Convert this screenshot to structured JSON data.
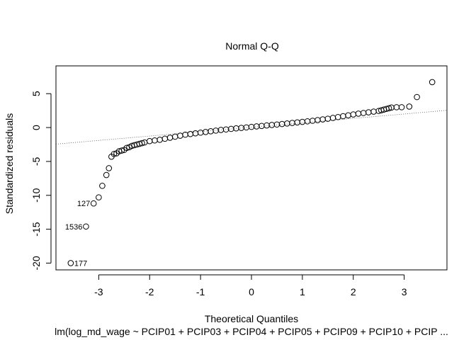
{
  "chart_data": {
    "type": "scatter",
    "title": "Normal Q-Q",
    "xlabel": "Theoretical Quantiles",
    "ylabel": "Standardized residuals",
    "subtitle": "lm(log_md_wage ~ PCIP01 + PCIP03 + PCIP04 + PCIP05 + PCIP09 + PCIP10 + PCIP ...",
    "xlim": [
      -3.84,
      3.84
    ],
    "ylim": [
      -21.0,
      9.1
    ],
    "x_ticks": [
      "-3",
      "-2",
      "-1",
      "0",
      "1",
      "2",
      "3"
    ],
    "y_ticks": [
      "-20",
      "-15",
      "-10",
      "-5",
      "0",
      "5"
    ],
    "grid": false,
    "reference_line": {
      "style": "dotted",
      "intercept": 0.05,
      "slope": 0.65
    },
    "points": [
      [
        -3.55,
        -20.0
      ],
      [
        -3.25,
        -14.6
      ],
      [
        -3.1,
        -11.2
      ],
      [
        -3.0,
        -10.3
      ],
      [
        -2.93,
        -8.6
      ],
      [
        -2.85,
        -7.0
      ],
      [
        -2.8,
        -6.0
      ],
      [
        -2.75,
        -4.3
      ],
      [
        -2.7,
        -3.9
      ],
      [
        -2.65,
        -3.8
      ],
      [
        -2.6,
        -3.5
      ],
      [
        -2.55,
        -3.4
      ],
      [
        -2.5,
        -3.3
      ],
      [
        -2.45,
        -3.0
      ],
      [
        -2.4,
        -2.9
      ],
      [
        -2.35,
        -2.7
      ],
      [
        -2.3,
        -2.6
      ],
      [
        -2.25,
        -2.5
      ],
      [
        -2.2,
        -2.4
      ],
      [
        -2.15,
        -2.3
      ],
      [
        -2.1,
        -2.2
      ],
      [
        -2.0,
        -2.0
      ],
      [
        -1.9,
        -1.9
      ],
      [
        -1.8,
        -1.8
      ],
      [
        -1.7,
        -1.65
      ],
      [
        -1.6,
        -1.5
      ],
      [
        -1.5,
        -1.35
      ],
      [
        -1.4,
        -1.2
      ],
      [
        -1.3,
        -1.05
      ],
      [
        -1.2,
        -0.95
      ],
      [
        -1.1,
        -0.85
      ],
      [
        -1.0,
        -0.75
      ],
      [
        -0.9,
        -0.65
      ],
      [
        -0.8,
        -0.55
      ],
      [
        -0.7,
        -0.45
      ],
      [
        -0.6,
        -0.35
      ],
      [
        -0.5,
        -0.28
      ],
      [
        -0.4,
        -0.2
      ],
      [
        -0.3,
        -0.12
      ],
      [
        -0.2,
        -0.05
      ],
      [
        -0.1,
        0.02
      ],
      [
        0.0,
        0.1
      ],
      [
        0.1,
        0.17
      ],
      [
        0.2,
        0.24
      ],
      [
        0.3,
        0.31
      ],
      [
        0.4,
        0.38
      ],
      [
        0.5,
        0.45
      ],
      [
        0.6,
        0.52
      ],
      [
        0.7,
        0.6
      ],
      [
        0.8,
        0.68
      ],
      [
        0.9,
        0.76
      ],
      [
        1.0,
        0.84
      ],
      [
        1.1,
        0.92
      ],
      [
        1.2,
        1.0
      ],
      [
        1.3,
        1.1
      ],
      [
        1.4,
        1.2
      ],
      [
        1.5,
        1.3
      ],
      [
        1.6,
        1.42
      ],
      [
        1.7,
        1.55
      ],
      [
        1.8,
        1.68
      ],
      [
        1.9,
        1.8
      ],
      [
        2.0,
        1.93
      ],
      [
        2.1,
        2.05
      ],
      [
        2.2,
        2.15
      ],
      [
        2.3,
        2.25
      ],
      [
        2.4,
        2.35
      ],
      [
        2.5,
        2.45
      ],
      [
        2.55,
        2.55
      ],
      [
        2.6,
        2.65
      ],
      [
        2.65,
        2.75
      ],
      [
        2.7,
        2.85
      ],
      [
        2.75,
        2.95
      ],
      [
        2.85,
        3.0
      ],
      [
        2.95,
        3.0
      ],
      [
        3.1,
        3.1
      ],
      [
        3.25,
        4.5
      ],
      [
        3.55,
        6.7
      ]
    ],
    "point_labels": [
      {
        "text": "177",
        "x": -3.55,
        "y": -20.0,
        "side": "right"
      },
      {
        "text": "1536",
        "x": -3.25,
        "y": -14.6,
        "side": "left"
      },
      {
        "text": "127",
        "x": -3.1,
        "y": -11.2,
        "side": "left"
      }
    ]
  }
}
